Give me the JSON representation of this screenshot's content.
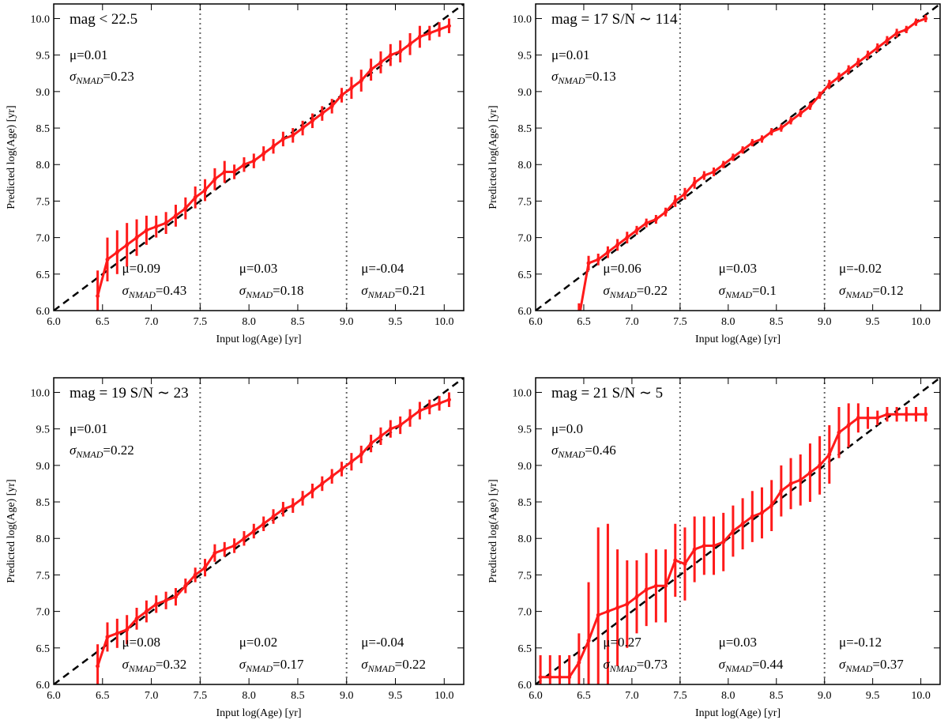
{
  "chart_data": [
    {
      "type": "errorline",
      "title": "mag < 22.5",
      "xlabel": "Input log(Age) [yr]",
      "ylabel": "Predicted log(Age) [yr]",
      "xlim": [
        6.0,
        10.2
      ],
      "ylim": [
        6.0,
        10.2
      ],
      "xticks": [
        {
          "value": 6,
          "label": "6.0"
        },
        {
          "value": 6.5,
          "label": "6.5"
        },
        {
          "value": 7,
          "label": "7.0"
        },
        {
          "value": 7.5,
          "label": "7.5"
        },
        {
          "value": 8,
          "label": "8.0"
        },
        {
          "value": 8.5,
          "label": "8.5"
        },
        {
          "value": 9,
          "label": "9.0"
        },
        {
          "value": 9.5,
          "label": "9.5"
        },
        {
          "value": 10,
          "label": "10.0"
        }
      ],
      "yticks": [
        {
          "value": 6,
          "label": "6.0"
        },
        {
          "value": 6.5,
          "label": "6.5"
        },
        {
          "value": 7,
          "label": "7.0"
        },
        {
          "value": 7.5,
          "label": "7.5"
        },
        {
          "value": 8,
          "label": "8.0"
        },
        {
          "value": 8.5,
          "label": "8.5"
        },
        {
          "value": 9,
          "label": "9.0"
        },
        {
          "value": 9.5,
          "label": "9.5"
        },
        {
          "value": 10,
          "label": "10.0"
        }
      ],
      "vlines": [
        7.5,
        9.0
      ],
      "color": "#ff1a1a",
      "x": [
        6.45,
        6.55,
        6.65,
        6.75,
        6.85,
        6.95,
        7.05,
        7.15,
        7.25,
        7.35,
        7.45,
        7.55,
        7.65,
        7.75,
        7.85,
        7.95,
        8.05,
        8.15,
        8.25,
        8.35,
        8.45,
        8.55,
        8.65,
        8.75,
        8.85,
        8.95,
        9.05,
        9.15,
        9.25,
        9.35,
        9.45,
        9.55,
        9.65,
        9.75,
        9.85,
        9.95,
        10.05
      ],
      "y": [
        6.2,
        6.7,
        6.8,
        6.9,
        7.0,
        7.1,
        7.15,
        7.2,
        7.3,
        7.4,
        7.55,
        7.65,
        7.8,
        7.9,
        7.9,
        8.0,
        8.05,
        8.15,
        8.25,
        8.35,
        8.4,
        8.5,
        8.6,
        8.7,
        8.8,
        8.95,
        9.05,
        9.15,
        9.3,
        9.4,
        9.5,
        9.55,
        9.65,
        9.75,
        9.8,
        9.85,
        9.9
      ],
      "err": [
        0.35,
        0.3,
        0.3,
        0.3,
        0.25,
        0.2,
        0.15,
        0.15,
        0.15,
        0.15,
        0.15,
        0.15,
        0.15,
        0.15,
        0.1,
        0.1,
        0.1,
        0.1,
        0.1,
        0.1,
        0.1,
        0.1,
        0.1,
        0.1,
        0.1,
        0.1,
        0.15,
        0.15,
        0.15,
        0.15,
        0.15,
        0.15,
        0.15,
        0.15,
        0.1,
        0.1,
        0.1
      ],
      "overall": {
        "mu": "μ=0.01",
        "sigma": [
          "σ",
          "NMAD",
          "=0.23"
        ]
      },
      "bins": [
        {
          "mu": "μ=0.09",
          "sigma": [
            "σ",
            "NMAD",
            "=0.43"
          ]
        },
        {
          "mu": "μ=0.03",
          "sigma": [
            "σ",
            "NMAD",
            "=0.18"
          ]
        },
        {
          "mu": "μ=-0.04",
          "sigma": [
            "σ",
            "NMAD",
            "=0.21"
          ]
        }
      ]
    },
    {
      "type": "errorline",
      "title": "mag = 17  S/N ∼ 114",
      "xlabel": "Input log(Age) [yr]",
      "ylabel": "Predicted log(Age) [yr]",
      "xlim": [
        6.0,
        10.2
      ],
      "ylim": [
        6.0,
        10.2
      ],
      "xticks": [
        {
          "value": 6,
          "label": "6.0"
        },
        {
          "value": 6.5,
          "label": "6.5"
        },
        {
          "value": 7,
          "label": "7.0"
        },
        {
          "value": 7.5,
          "label": "7.5"
        },
        {
          "value": 8,
          "label": "8.0"
        },
        {
          "value": 8.5,
          "label": "8.5"
        },
        {
          "value": 9,
          "label": "9.0"
        },
        {
          "value": 9.5,
          "label": "9.5"
        },
        {
          "value": 10,
          "label": "10.0"
        }
      ],
      "yticks": [
        {
          "value": 6,
          "label": "6.0"
        },
        {
          "value": 6.5,
          "label": "6.5"
        },
        {
          "value": 7,
          "label": "7.0"
        },
        {
          "value": 7.5,
          "label": "7.5"
        },
        {
          "value": 8,
          "label": "8.0"
        },
        {
          "value": 8.5,
          "label": "8.5"
        },
        {
          "value": 9,
          "label": "9.0"
        },
        {
          "value": 9.5,
          "label": "9.5"
        },
        {
          "value": 10,
          "label": "10.0"
        }
      ],
      "vlines": [
        7.5,
        9.0
      ],
      "color": "#ff1a1a",
      "x": [
        6.45,
        6.55,
        6.65,
        6.75,
        6.85,
        6.95,
        7.05,
        7.15,
        7.25,
        7.35,
        7.45,
        7.55,
        7.65,
        7.75,
        7.85,
        7.95,
        8.05,
        8.15,
        8.25,
        8.35,
        8.45,
        8.55,
        8.65,
        8.75,
        8.85,
        8.95,
        9.05,
        9.15,
        9.25,
        9.35,
        9.45,
        9.55,
        9.65,
        9.75,
        9.85,
        9.95,
        10.05
      ],
      "y": [
        5.9,
        6.65,
        6.7,
        6.8,
        6.9,
        7.0,
        7.1,
        7.2,
        7.25,
        7.35,
        7.5,
        7.6,
        7.75,
        7.85,
        7.9,
        8.0,
        8.1,
        8.2,
        8.3,
        8.35,
        8.45,
        8.5,
        8.6,
        8.7,
        8.8,
        8.95,
        9.1,
        9.2,
        9.3,
        9.4,
        9.5,
        9.6,
        9.7,
        9.8,
        9.85,
        9.95,
        10.0
      ],
      "err": [
        0.2,
        0.1,
        0.08,
        0.08,
        0.08,
        0.08,
        0.06,
        0.06,
        0.06,
        0.06,
        0.08,
        0.08,
        0.08,
        0.06,
        0.06,
        0.05,
        0.05,
        0.05,
        0.05,
        0.05,
        0.05,
        0.05,
        0.05,
        0.05,
        0.05,
        0.05,
        0.06,
        0.06,
        0.06,
        0.06,
        0.06,
        0.06,
        0.06,
        0.06,
        0.05,
        0.05,
        0.05
      ],
      "overall": {
        "mu": "μ=0.01",
        "sigma": [
          "σ",
          "NMAD",
          "=0.13"
        ]
      },
      "bins": [
        {
          "mu": "μ=0.06",
          "sigma": [
            "σ",
            "NMAD",
            "=0.22"
          ]
        },
        {
          "mu": "μ=0.03",
          "sigma": [
            "σ",
            "NMAD",
            "=0.1"
          ]
        },
        {
          "mu": "μ=-0.02",
          "sigma": [
            "σ",
            "NMAD",
            "=0.12"
          ]
        }
      ]
    },
    {
      "type": "errorline",
      "title": "mag = 19  S/N ∼ 23",
      "xlabel": "Input log(Age) [yr]",
      "ylabel": "Predicted log(Age) [yr]",
      "xlim": [
        6.0,
        10.2
      ],
      "ylim": [
        6.0,
        10.2
      ],
      "xticks": [
        {
          "value": 6,
          "label": "6.0"
        },
        {
          "value": 6.5,
          "label": "6.5"
        },
        {
          "value": 7,
          "label": "7.0"
        },
        {
          "value": 7.5,
          "label": "7.5"
        },
        {
          "value": 8,
          "label": "8.0"
        },
        {
          "value": 8.5,
          "label": "8.5"
        },
        {
          "value": 9,
          "label": "9.0"
        },
        {
          "value": 9.5,
          "label": "9.5"
        },
        {
          "value": 10,
          "label": "10.0"
        }
      ],
      "yticks": [
        {
          "value": 6,
          "label": "6.0"
        },
        {
          "value": 6.5,
          "label": "6.5"
        },
        {
          "value": 7,
          "label": "7.0"
        },
        {
          "value": 7.5,
          "label": "7.5"
        },
        {
          "value": 8,
          "label": "8.0"
        },
        {
          "value": 8.5,
          "label": "8.5"
        },
        {
          "value": 9,
          "label": "9.0"
        },
        {
          "value": 9.5,
          "label": "9.5"
        },
        {
          "value": 10,
          "label": "10.0"
        }
      ],
      "vlines": [
        7.5,
        9.0
      ],
      "color": "#ff1a1a",
      "x": [
        6.45,
        6.55,
        6.65,
        6.75,
        6.85,
        6.95,
        7.05,
        7.15,
        7.25,
        7.35,
        7.45,
        7.55,
        7.65,
        7.75,
        7.85,
        7.95,
        8.05,
        8.15,
        8.25,
        8.35,
        8.45,
        8.55,
        8.65,
        8.75,
        8.85,
        8.95,
        9.05,
        9.15,
        9.25,
        9.35,
        9.45,
        9.55,
        9.65,
        9.75,
        9.85,
        9.95,
        10.05
      ],
      "y": [
        6.25,
        6.65,
        6.7,
        6.75,
        6.9,
        7.0,
        7.1,
        7.15,
        7.2,
        7.35,
        7.5,
        7.6,
        7.8,
        7.85,
        7.9,
        8.0,
        8.1,
        8.2,
        8.3,
        8.4,
        8.45,
        8.55,
        8.65,
        8.75,
        8.85,
        8.95,
        9.05,
        9.15,
        9.3,
        9.4,
        9.5,
        9.55,
        9.65,
        9.75,
        9.8,
        9.85,
        9.9
      ],
      "err": [
        0.3,
        0.2,
        0.2,
        0.2,
        0.15,
        0.15,
        0.12,
        0.12,
        0.12,
        0.1,
        0.1,
        0.12,
        0.12,
        0.1,
        0.1,
        0.1,
        0.1,
        0.1,
        0.1,
        0.1,
        0.1,
        0.1,
        0.1,
        0.1,
        0.1,
        0.1,
        0.12,
        0.12,
        0.12,
        0.12,
        0.12,
        0.12,
        0.12,
        0.12,
        0.1,
        0.1,
        0.1
      ],
      "overall": {
        "mu": "μ=0.01",
        "sigma": [
          "σ",
          "NMAD",
          "=0.22"
        ]
      },
      "bins": [
        {
          "mu": "μ=0.08",
          "sigma": [
            "σ",
            "NMAD",
            "=0.32"
          ]
        },
        {
          "mu": "μ=0.02",
          "sigma": [
            "σ",
            "NMAD",
            "=0.17"
          ]
        },
        {
          "mu": "μ=-0.04",
          "sigma": [
            "σ",
            "NMAD",
            "=0.22"
          ]
        }
      ]
    },
    {
      "type": "errorline",
      "title": "mag = 21  S/N ∼ 5",
      "xlabel": "Input log(Age) [yr]",
      "ylabel": "Predicted log(Age) [yr]",
      "xlim": [
        6.0,
        10.2
      ],
      "ylim": [
        6.0,
        10.2
      ],
      "xticks": [
        {
          "value": 6,
          "label": "6.0"
        },
        {
          "value": 6.5,
          "label": "6.5"
        },
        {
          "value": 7,
          "label": "7.0"
        },
        {
          "value": 7.5,
          "label": "7.5"
        },
        {
          "value": 8,
          "label": "8.0"
        },
        {
          "value": 8.5,
          "label": "8.5"
        },
        {
          "value": 9,
          "label": "9.0"
        },
        {
          "value": 9.5,
          "label": "9.5"
        },
        {
          "value": 10,
          "label": "10.0"
        }
      ],
      "yticks": [
        {
          "value": 6,
          "label": "6.0"
        },
        {
          "value": 6.5,
          "label": "6.5"
        },
        {
          "value": 7,
          "label": "7.0"
        },
        {
          "value": 7.5,
          "label": "7.5"
        },
        {
          "value": 8,
          "label": "8.0"
        },
        {
          "value": 8.5,
          "label": "8.5"
        },
        {
          "value": 9,
          "label": "9.0"
        },
        {
          "value": 9.5,
          "label": "9.5"
        },
        {
          "value": 10,
          "label": "10.0"
        }
      ],
      "vlines": [
        7.5,
        9.0
      ],
      "color": "#ff1a1a",
      "x": [
        6.05,
        6.15,
        6.25,
        6.35,
        6.45,
        6.55,
        6.65,
        6.75,
        6.85,
        6.95,
        7.05,
        7.15,
        7.25,
        7.35,
        7.45,
        7.55,
        7.65,
        7.75,
        7.85,
        7.95,
        8.05,
        8.15,
        8.25,
        8.35,
        8.45,
        8.55,
        8.65,
        8.75,
        8.85,
        8.95,
        9.05,
        9.15,
        9.25,
        9.35,
        9.45,
        9.55,
        9.65,
        9.75,
        9.85,
        9.95,
        10.05
      ],
      "y": [
        6.1,
        6.1,
        6.1,
        6.1,
        6.3,
        6.6,
        6.95,
        7.0,
        7.05,
        7.1,
        7.2,
        7.3,
        7.35,
        7.35,
        7.7,
        7.65,
        7.85,
        7.9,
        7.9,
        7.95,
        8.1,
        8.2,
        8.3,
        8.35,
        8.45,
        8.65,
        8.75,
        8.8,
        8.9,
        9.0,
        9.15,
        9.45,
        9.55,
        9.65,
        9.65,
        9.65,
        9.7,
        9.7,
        9.7,
        9.7,
        9.7
      ],
      "err": [
        0.3,
        0.3,
        0.3,
        0.3,
        0.4,
        0.8,
        1.2,
        1.2,
        0.8,
        0.6,
        0.5,
        0.5,
        0.5,
        0.5,
        0.5,
        0.5,
        0.45,
        0.4,
        0.4,
        0.4,
        0.35,
        0.35,
        0.35,
        0.35,
        0.35,
        0.35,
        0.35,
        0.35,
        0.4,
        0.4,
        0.4,
        0.35,
        0.3,
        0.2,
        0.15,
        0.1,
        0.1,
        0.1,
        0.1,
        0.1,
        0.1
      ],
      "overall": {
        "mu": "μ=0.0",
        "sigma": [
          "σ",
          "NMAD",
          "=0.46"
        ]
      },
      "bins": [
        {
          "mu": "μ=0.27",
          "sigma": [
            "σ",
            "NMAD",
            "=0.73"
          ]
        },
        {
          "mu": "μ=0.03",
          "sigma": [
            "σ",
            "NMAD",
            "=0.44"
          ]
        },
        {
          "mu": "μ=-0.12",
          "sigma": [
            "σ",
            "NMAD",
            "=0.37"
          ]
        }
      ]
    }
  ]
}
